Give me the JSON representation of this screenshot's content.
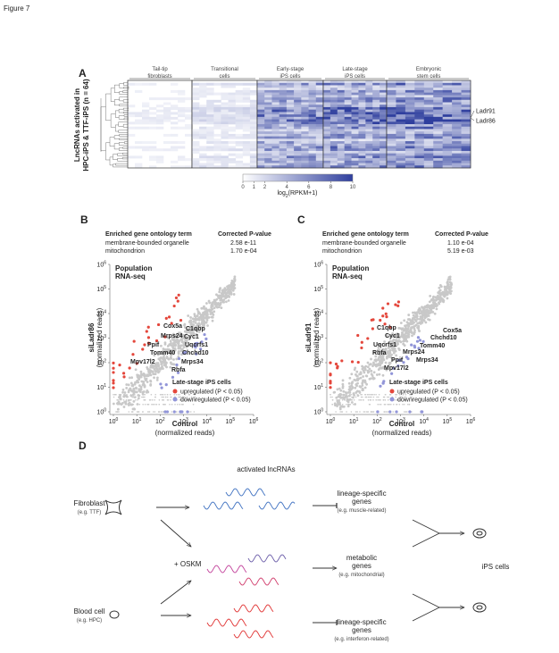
{
  "figure_label": "Figure 7",
  "panel_a": {
    "label": "A",
    "y_label": [
      "LncRNAs activated in",
      "HPC-iPS & TTF-iPS (n = 64)"
    ],
    "column_groups": [
      [
        "Tail-tip",
        "fibroblasts"
      ],
      [
        "Transitional",
        "cells"
      ],
      [
        "Early-stage",
        "iPS cells"
      ],
      [
        "Late-stage",
        "iPS cells"
      ],
      [
        "Embryonic",
        "stem cells"
      ]
    ],
    "row_labels": [
      "Ladr91",
      "Ladr86"
    ],
    "colorbar": {
      "lim": [
        0,
        10
      ],
      "ticks": [
        0,
        1,
        2,
        4,
        6,
        8,
        10
      ],
      "label": [
        "log",
        "2",
        "(RPKM+1)"
      ]
    }
  },
  "panel_b": {
    "label": "B",
    "table": {
      "header": [
        "Enriched gene ontology term",
        "Corrected P-value"
      ],
      "rows": [
        [
          "membrane-bounded organelle",
          "2.58 e-11"
        ],
        [
          "mitochondrion",
          "1.70 e-04"
        ]
      ]
    },
    "note": [
      "Population",
      "RNA-seq"
    ],
    "y_label": [
      "siLadr86",
      "(normalized reads)"
    ],
    "x_label": [
      "Control",
      "(normalized reads)"
    ],
    "tick_base": "10",
    "xlim": [
      0,
      6
    ],
    "ylim": [
      0,
      6
    ],
    "xticks": [
      0,
      1,
      2,
      3,
      4,
      5,
      6
    ],
    "yticks": [
      0,
      1,
      2,
      3,
      4,
      5,
      6
    ],
    "genes": [
      "Cox5a",
      "C1qbp",
      "Mrps24",
      "Cyc1",
      "Ppif",
      "Uqcrfs1",
      "Tomm40",
      "Chchd10",
      "Mpv17l2",
      "Mrps34",
      "Rbfa"
    ],
    "legend": {
      "title": "Late-stage iPS cells",
      "items": [
        "upregulated (P < 0.05)",
        "downregulated (P < 0.05)"
      ]
    }
  },
  "panel_c": {
    "label": "C",
    "table": {
      "header": [
        "Enriched gene ontology term",
        "Corrected P-value"
      ],
      "rows": [
        [
          "membrane-bounded organelle",
          "1.10 e-04"
        ],
        [
          "mitochondrion",
          "5.19 e-03"
        ]
      ]
    },
    "note": [
      "Population",
      "RNA-seq"
    ],
    "y_label": [
      "siLadr91",
      "(normalized reads)"
    ],
    "x_label": [
      "Control",
      "(normalized reads)"
    ],
    "tick_base": "10",
    "xlim": [
      0,
      6
    ],
    "ylim": [
      0,
      6
    ],
    "xticks": [
      0,
      1,
      2,
      3,
      4,
      5,
      6
    ],
    "yticks": [
      0,
      1,
      2,
      3,
      4,
      5,
      6
    ],
    "genes": [
      "C1qbp",
      "Cox5a",
      "Cyc1",
      "Chchd10",
      "Tomm40",
      "Uqcrfs1",
      "Mrps24",
      "Rbfa",
      "Ppif",
      "Mrps34",
      "Mpv17l2"
    ],
    "legend": {
      "title": "Late-stage iPS cells",
      "items": [
        "upregulated (P < 0.05)",
        "downregulated (P < 0.05)"
      ]
    }
  },
  "panel_d": {
    "label": "D",
    "top_label": "activated lncRNAs",
    "sources": [
      [
        "Fibroblast",
        "(e.g. TTF)"
      ],
      [
        "Blood cell",
        "(e.g. HPC)"
      ]
    ],
    "factor": "+ OSKM",
    "targets": [
      [
        "lineage-specific",
        "genes",
        "(e.g. muscle-related)"
      ],
      [
        "metabolic",
        "genes",
        "(e.g. mitochondrial)"
      ],
      [
        "lineage-specific",
        "genes",
        "(e.g. interferon-related)"
      ]
    ],
    "outcome": "iPS cells"
  }
}
